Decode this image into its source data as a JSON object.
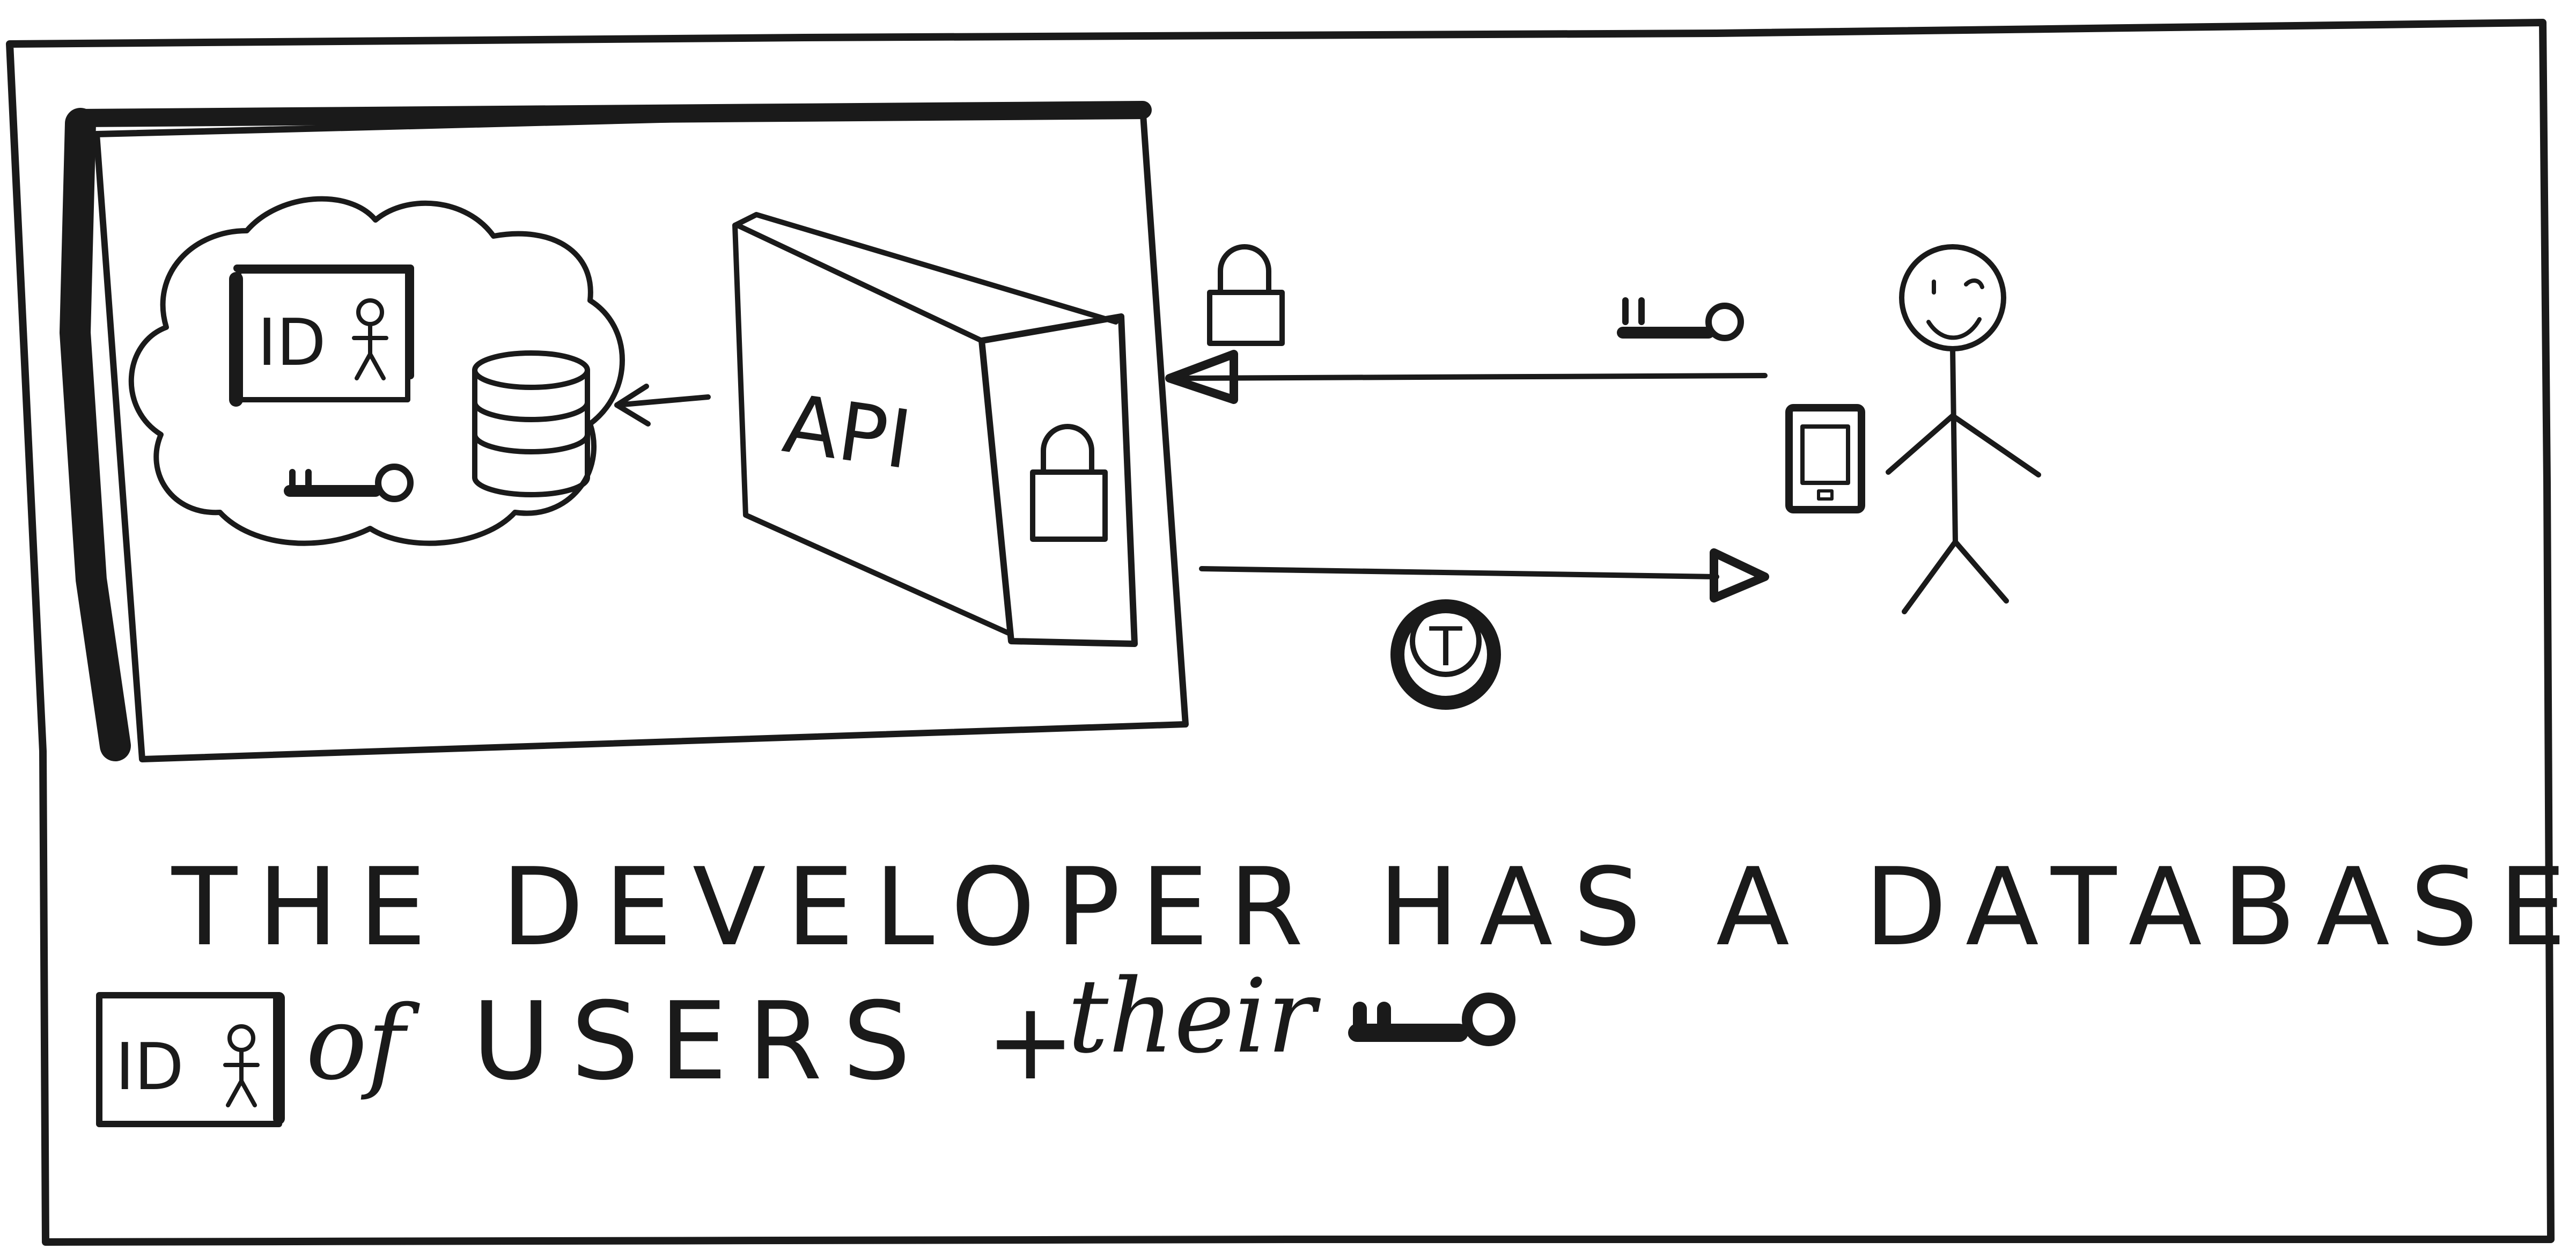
{
  "diagram": {
    "api_label": "API",
    "id_label": "ID",
    "token_label": "T",
    "caption": {
      "line1": "THE DEVELOPER  HAS A DATABASE OF",
      "id_label": "ID",
      "line2_a": "of",
      "line2_b": "USERS +",
      "line2_c": "their"
    }
  }
}
